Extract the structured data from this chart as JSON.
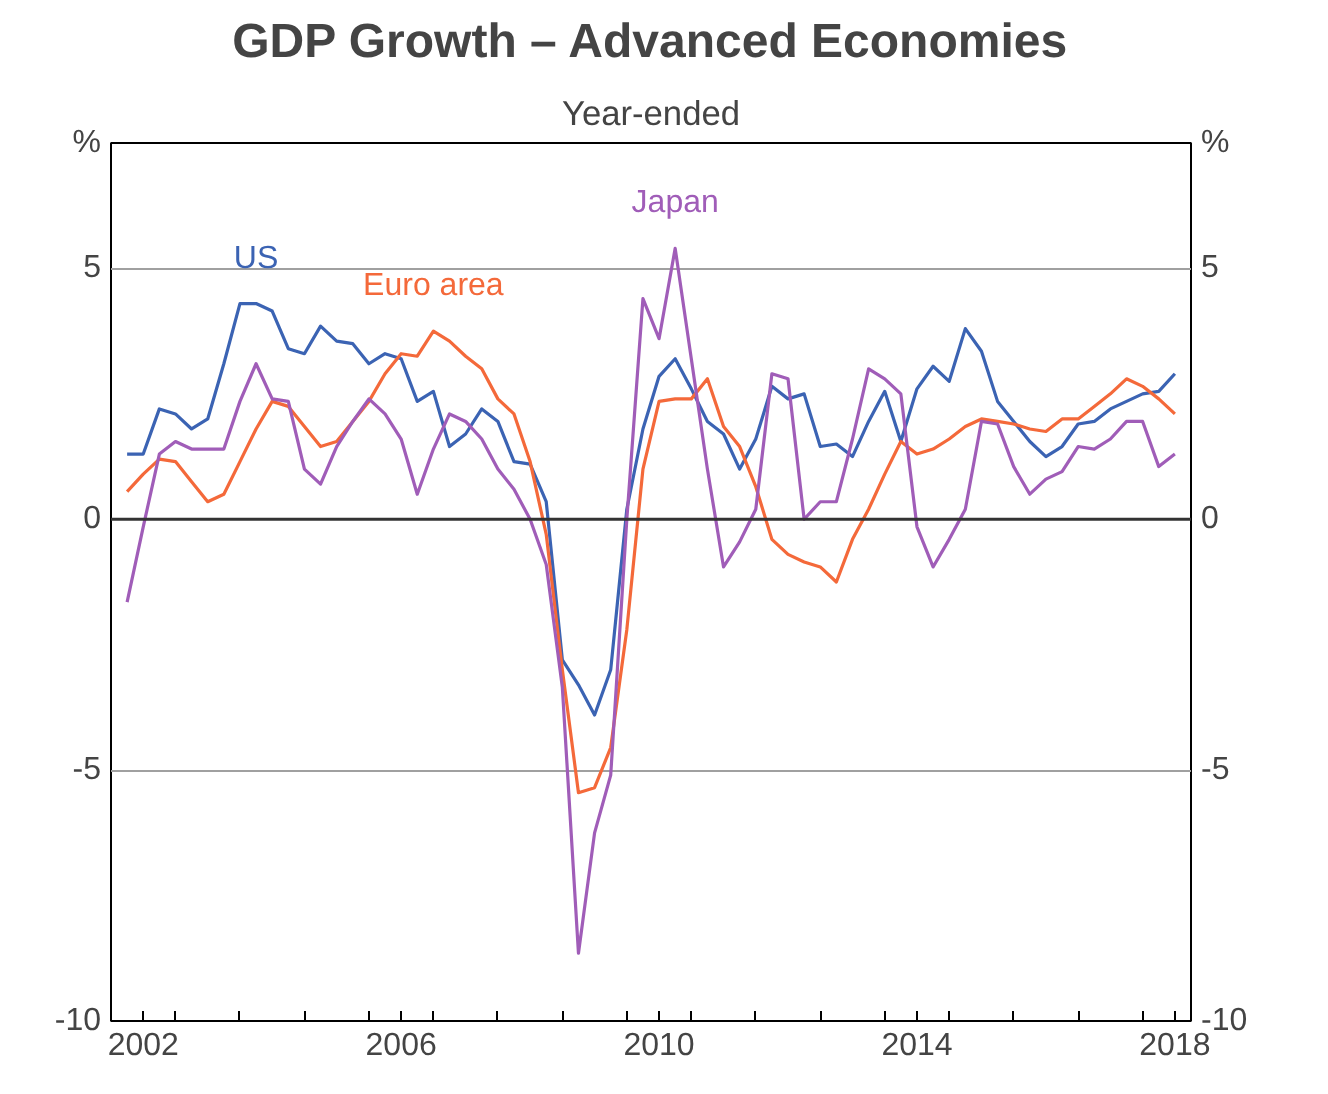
{
  "chart_data": {
    "type": "line",
    "title": "GDP Growth – Advanced Economies",
    "subtitle": "Year-ended",
    "ylabel": "%",
    "y2label": "%",
    "x": [
      2002.25,
      2002.5,
      2002.75,
      2003,
      2003.25,
      2003.5,
      2003.75,
      2004,
      2004.25,
      2004.5,
      2004.75,
      2005,
      2005.25,
      2005.5,
      2005.75,
      2006,
      2006.25,
      2006.5,
      2006.75,
      2007,
      2007.25,
      2007.5,
      2007.75,
      2008,
      2008.25,
      2008.5,
      2008.75,
      2009,
      2009.25,
      2009.5,
      2009.75,
      2010,
      2010.25,
      2010.5,
      2010.75,
      2011,
      2011.25,
      2011.5,
      2011.75,
      2012,
      2012.25,
      2012.5,
      2012.75,
      2013,
      2013.25,
      2013.5,
      2013.75,
      2014,
      2014.25,
      2014.5,
      2014.75,
      2015,
      2015.25,
      2015.5,
      2015.75,
      2016,
      2016.25,
      2016.5,
      2016.75,
      2017,
      2017.25,
      2017.5,
      2017.75,
      2018,
      2018.25,
      2018.5
    ],
    "series": [
      {
        "name": "US",
        "color": "#3b63b3",
        "values": [
          1.3,
          1.3,
          2.2,
          2.1,
          1.8,
          2.0,
          3.1,
          4.3,
          4.3,
          4.15,
          3.4,
          3.3,
          3.85,
          3.55,
          3.5,
          3.1,
          3.3,
          3.2,
          2.35,
          2.55,
          1.45,
          1.7,
          2.2,
          1.95,
          1.15,
          1.1,
          0.35,
          -2.8,
          -3.3,
          -3.9,
          -3.0,
          0.2,
          1.8,
          2.85,
          3.2,
          2.6,
          1.95,
          1.7,
          1.0,
          1.6,
          2.65,
          2.4,
          2.5,
          1.45,
          1.5,
          1.25,
          1.95,
          2.55,
          1.55,
          2.6,
          3.05,
          2.75,
          3.8,
          3.35,
          2.35,
          1.95,
          1.55,
          1.25,
          1.45,
          1.9,
          1.95,
          2.2,
          2.35,
          2.5,
          2.55,
          2.9
        ]
      },
      {
        "name": "Euro area",
        "color": "#f4693a",
        "values": [
          0.55,
          0.9,
          1.2,
          1.15,
          0.75,
          0.35,
          0.5,
          1.15,
          1.8,
          2.35,
          2.25,
          1.85,
          1.45,
          1.55,
          1.95,
          2.35,
          2.9,
          3.3,
          3.25,
          3.75,
          3.55,
          3.25,
          3.0,
          2.4,
          2.1,
          1.15,
          -0.3,
          -3.0,
          -5.45,
          -5.35,
          -4.55,
          -2.2,
          1.0,
          2.35,
          2.4,
          2.4,
          2.8,
          1.85,
          1.45,
          0.65,
          -0.4,
          -0.7,
          -0.85,
          -0.95,
          -1.25,
          -0.4,
          0.2,
          0.9,
          1.55,
          1.3,
          1.4,
          1.6,
          1.85,
          2.0,
          1.95,
          1.9,
          1.8,
          1.75,
          2.0,
          2.0,
          2.25,
          2.5,
          2.8,
          2.65,
          2.4,
          2.1
        ]
      },
      {
        "name": "Japan",
        "color": "#a05db8",
        "values": [
          -1.65,
          -0.15,
          1.3,
          1.55,
          1.4,
          1.4,
          1.4,
          2.35,
          3.1,
          2.4,
          2.35,
          1.0,
          0.7,
          1.45,
          1.95,
          2.4,
          2.1,
          1.6,
          0.5,
          1.4,
          2.1,
          1.95,
          1.6,
          1.0,
          0.6,
          0.0,
          -0.9,
          -3.35,
          -8.65,
          -6.25,
          -5.1,
          0.0,
          4.4,
          3.6,
          5.4,
          3.2,
          1.0,
          -0.95,
          -0.45,
          0.2,
          2.9,
          2.8,
          0.0,
          0.35,
          0.35,
          1.6,
          3.0,
          2.8,
          2.5,
          -0.15,
          -0.95,
          -0.4,
          0.2,
          1.95,
          1.9,
          1.05,
          0.5,
          0.8,
          0.95,
          1.45,
          1.4,
          1.6,
          1.95,
          1.95,
          1.05,
          1.3
        ]
      }
    ],
    "xlim": [
      2002,
      2018.75
    ],
    "xticks": [
      {
        "value": 2002.5,
        "label": "2002"
      },
      {
        "value": 2003,
        "label": null
      },
      {
        "value": 2004,
        "label": null
      },
      {
        "value": 2005,
        "label": null
      },
      {
        "value": 2006,
        "label": null
      },
      {
        "value": 2006.5,
        "label": "2006"
      },
      {
        "value": 2007,
        "label": null
      },
      {
        "value": 2008,
        "label": null
      },
      {
        "value": 2009,
        "label": null
      },
      {
        "value": 2010,
        "label": null
      },
      {
        "value": 2010.5,
        "label": "2010"
      },
      {
        "value": 2011,
        "label": null
      },
      {
        "value": 2012,
        "label": null
      },
      {
        "value": 2013,
        "label": null
      },
      {
        "value": 2014,
        "label": null
      },
      {
        "value": 2014.5,
        "label": "2014"
      },
      {
        "value": 2015,
        "label": null
      },
      {
        "value": 2016,
        "label": null
      },
      {
        "value": 2017,
        "label": null
      },
      {
        "value": 2018,
        "label": null
      },
      {
        "value": 2018.5,
        "label": "2018"
      }
    ],
    "ylim": [
      -10,
      7.5
    ],
    "yticks": [
      -10,
      -5,
      0,
      5
    ],
    "y2lim": [
      -10,
      7.5
    ],
    "y2ticks": [
      -10,
      -5,
      0,
      5
    ],
    "ref_lines": [
      {
        "axis": "y",
        "value": 0,
        "color": "#333333"
      }
    ],
    "grid": "y",
    "line_style": "solid",
    "marker": "none"
  }
}
